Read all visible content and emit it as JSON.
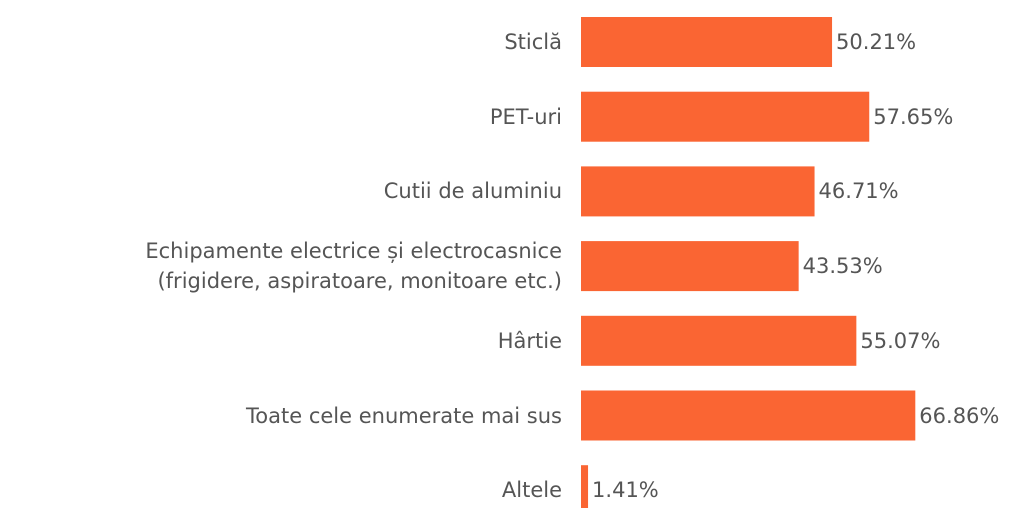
{
  "chart_data": {
    "type": "barh",
    "categories": [
      "Sticlă",
      "PET-uri",
      "Cutii de aluminiu",
      "Echipamente electrice și electrocasnice\n(frigidere, aspiratoare, monitoare etc.)",
      "Hârtie",
      "Toate cele enumerate mai sus",
      "Altele"
    ],
    "values": [
      50.21,
      57.65,
      46.71,
      43.53,
      55.07,
      66.86,
      1.41
    ],
    "value_labels": [
      "50.21%",
      "57.65%",
      "46.71%",
      "43.53%",
      "55.07%",
      "66.86%",
      "1.41%"
    ],
    "color": "#fa6533"
  }
}
